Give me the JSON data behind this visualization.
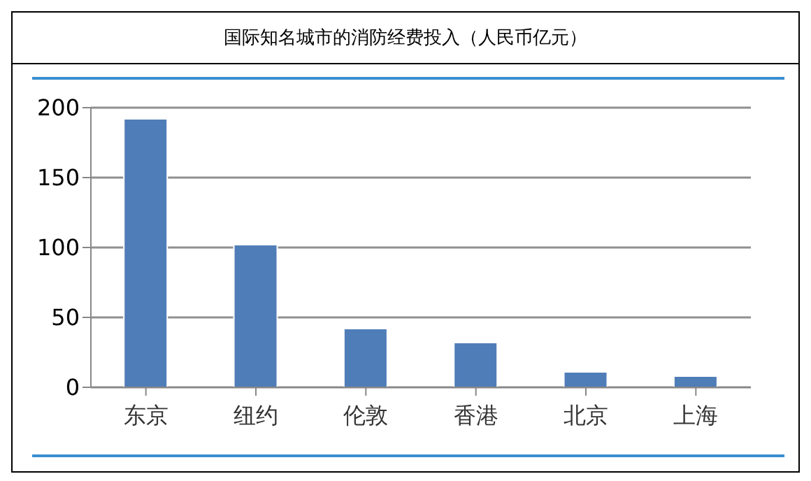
{
  "chart_data": {
    "type": "bar",
    "title": "国际知名城市的消防经费投入（人民币亿元）",
    "categories": [
      "东京",
      "纽约",
      "伦敦",
      "香港",
      "北京",
      "上海"
    ],
    "values": [
      192,
      102,
      42,
      32,
      11,
      8
    ],
    "color": "#4f7db8",
    "ylim": [
      0,
      200
    ],
    "yticks": [
      0,
      50,
      100,
      150,
      200
    ],
    "grid": "y"
  }
}
